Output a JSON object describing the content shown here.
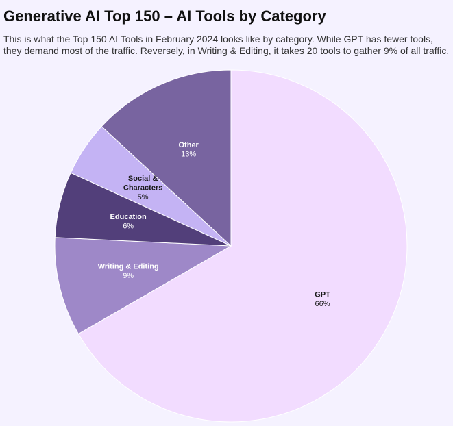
{
  "chart_data": {
    "type": "pie",
    "title": "Generative AI Top 150 – AI Tools by Category",
    "subtitle": "This is what the Top 150 AI Tools in February 2024 looks like by category. While GPT has fewer tools, they demand most of the traffic. Reversely, in Writing & Editing, it takes 20 tools to gather 9% of all traffic.",
    "slices": [
      {
        "label": [
          "GPT"
        ],
        "value": 66,
        "value_label": "66%",
        "color": "#f2dcff",
        "text_color": "#1a1a1a"
      },
      {
        "label": [
          "Writing & Editing"
        ],
        "value": 9,
        "value_label": "9%",
        "color": "#9e88c8",
        "text_color": "#ffffff"
      },
      {
        "label": [
          "Education"
        ],
        "value": 6,
        "value_label": "6%",
        "color": "#523f7a",
        "text_color": "#ffffff"
      },
      {
        "label": [
          "Social &",
          "Characters"
        ],
        "value": 5,
        "value_label": "5%",
        "color": "#c4b3f4",
        "text_color": "#1a1a1a"
      },
      {
        "label": [
          "Other"
        ],
        "value": 13,
        "value_label": "13%",
        "color": "#7864a0",
        "text_color": "#ffffff"
      }
    ]
  }
}
